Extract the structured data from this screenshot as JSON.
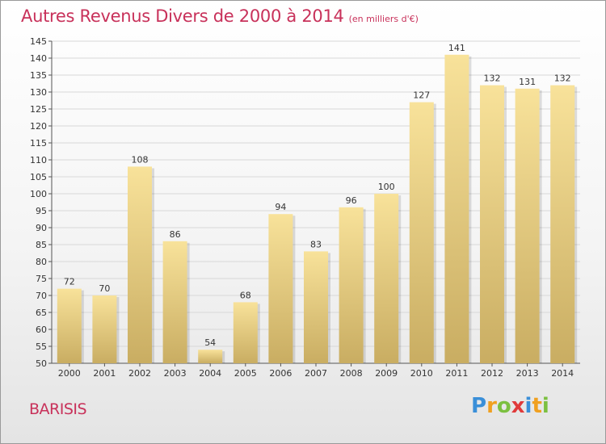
{
  "title": "Autres Revenus Divers de 2000 à 2014",
  "subtitle": "(en milliers d'€)",
  "commune": "BARISIS",
  "logo": {
    "letters": [
      "P",
      "r",
      "o",
      "x",
      "i",
      "t",
      "i"
    ],
    "colors": [
      "#3a8fd8",
      "#f0a020",
      "#7cc040",
      "#e03a3a",
      "#3a8fd8",
      "#f0a020",
      "#7cc040"
    ]
  },
  "colors": {
    "bar_top": "#f8e29a",
    "bar_bottom": "#c9ad62",
    "title": "#c8315a",
    "grid": "#d8d8d8"
  },
  "chart_data": {
    "type": "bar",
    "title": "Autres Revenus Divers de 2000 à 2014",
    "categories": [
      "2000",
      "2001",
      "2002",
      "2003",
      "2004",
      "2005",
      "2006",
      "2007",
      "2008",
      "2009",
      "2010",
      "2011",
      "2012",
      "2013",
      "2014"
    ],
    "values": [
      72,
      70,
      108,
      86,
      54,
      68,
      94,
      83,
      96,
      100,
      127,
      141,
      132,
      131,
      132
    ],
    "ylim": [
      50,
      145
    ],
    "yticks": [
      50,
      55,
      60,
      65,
      70,
      75,
      80,
      85,
      90,
      95,
      100,
      105,
      110,
      115,
      120,
      125,
      130,
      135,
      140,
      145
    ],
    "grid": true,
    "data_labels": true
  }
}
